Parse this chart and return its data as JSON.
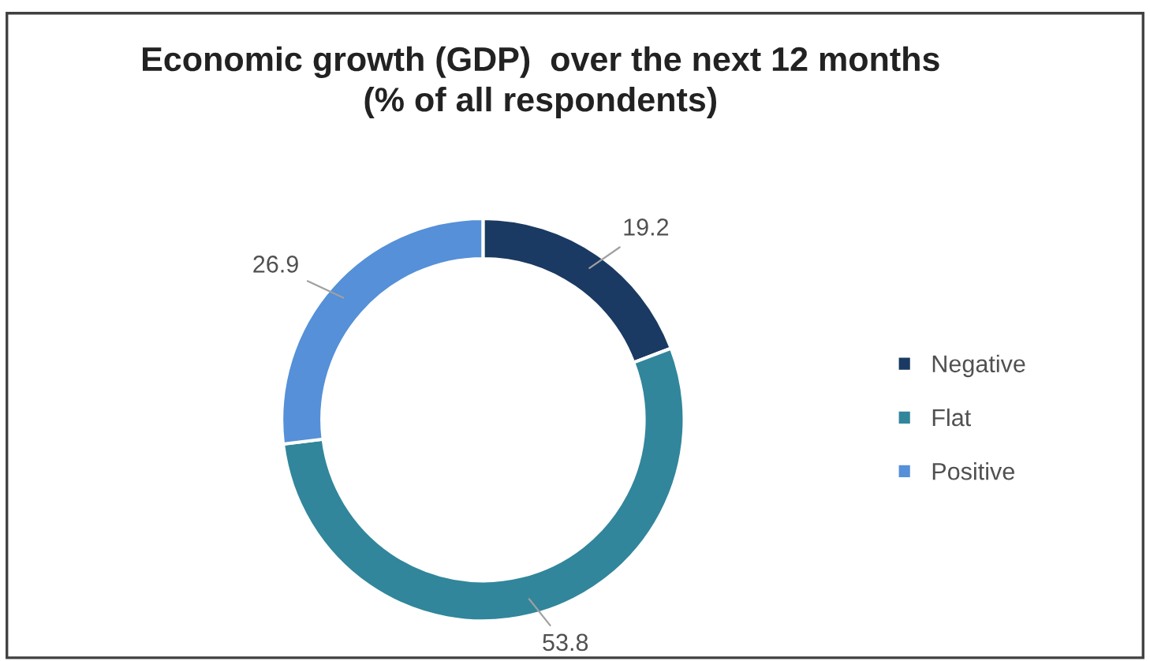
{
  "chart_data": {
    "type": "donut",
    "title": "Economic growth (GDP)  over the next 12 months\n(% of all respondents)",
    "categories": [
      "Negative",
      "Flat",
      "Positive"
    ],
    "values": [
      19.2,
      53.8,
      26.9
    ],
    "colors": [
      "#1a3a63",
      "#31869b",
      "#5590d8"
    ],
    "data_labels": true,
    "legend": "right"
  }
}
